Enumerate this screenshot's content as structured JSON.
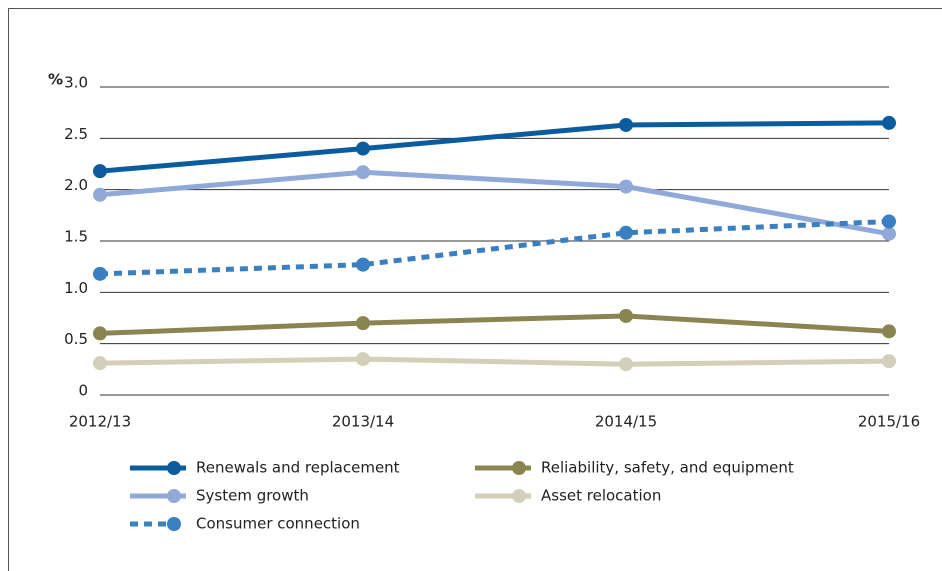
{
  "chart_data": {
    "type": "line",
    "y_label": "%",
    "categories": [
      "2012/13",
      "2013/14",
      "2014/15",
      "2015/16"
    ],
    "ylim": [
      0,
      3.0
    ],
    "yticks": [
      0,
      0.5,
      {
        "value": 1,
        "label": "1.0"
      },
      1.5,
      {
        "value": 2,
        "label": "2.0"
      },
      2.5,
      {
        "value": 3,
        "label": "3.0"
      }
    ],
    "grid": true,
    "series": [
      {
        "name": "Renewals and replacement",
        "color": "#0b5c9e",
        "style": "solid",
        "values": [
          2.18,
          2.4,
          2.63,
          2.65
        ]
      },
      {
        "name": "System growth",
        "color": "#8fa9d8",
        "style": "solid",
        "values": [
          1.95,
          2.17,
          2.03,
          1.57
        ]
      },
      {
        "name": "Consumer connection",
        "color": "#3a7fc1",
        "style": "dashed",
        "values": [
          1.18,
          1.27,
          1.58,
          1.69
        ]
      },
      {
        "name": "Reliability, safety, and equipment",
        "color": "#8a8450",
        "style": "solid",
        "values": [
          0.6,
          0.7,
          0.77,
          0.62
        ]
      },
      {
        "name": "Asset relocation",
        "color": "#d4cfb8",
        "style": "solid",
        "values": [
          0.31,
          0.35,
          0.3,
          0.33
        ]
      }
    ]
  }
}
